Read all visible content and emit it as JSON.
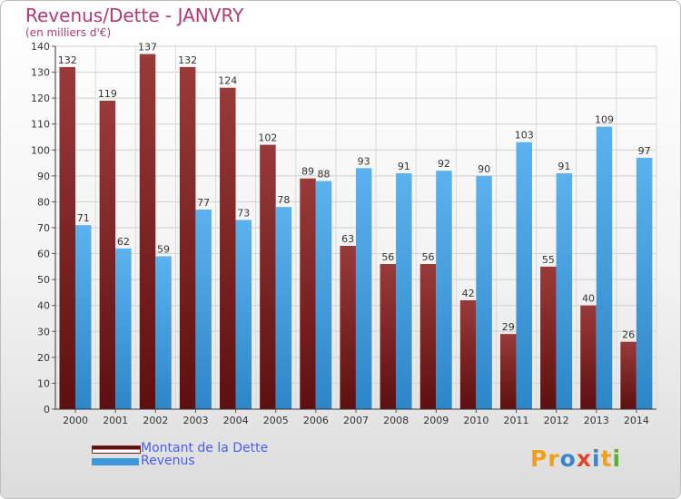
{
  "title": "Revenus/Dette - JANVRY",
  "subtitle": "(en milliers d'€)",
  "logo": {
    "text": "Proxiti",
    "letter_colors": [
      "#f0a020",
      "#f0a020",
      "#3a86c8",
      "#e0462a",
      "#3a86c8",
      "#f0a020",
      "#58b030"
    ]
  },
  "chart_data": {
    "type": "bar",
    "categories": [
      "2000",
      "2001",
      "2002",
      "2003",
      "2004",
      "2005",
      "2006",
      "2007",
      "2008",
      "2009",
      "2010",
      "2011",
      "2012",
      "2013",
      "2014"
    ],
    "series": [
      {
        "name": "Montant de la Dette",
        "color": "#7a1e1e",
        "color_light": "#9a3a3a",
        "values": [
          132,
          119,
          137,
          132,
          124,
          102,
          89,
          63,
          56,
          56,
          42,
          29,
          55,
          40,
          26
        ]
      },
      {
        "name": "Revenus",
        "color": "#3d98dc",
        "color_light": "#5aafea",
        "values": [
          71,
          62,
          59,
          77,
          73,
          78,
          88,
          93,
          91,
          92,
          90,
          103,
          91,
          109,
          97
        ]
      }
    ],
    "ylim": [
      0,
      140
    ],
    "yticks": [
      0,
      10,
      20,
      30,
      40,
      50,
      60,
      70,
      80,
      90,
      100,
      110,
      120,
      130,
      140
    ],
    "grid": true,
    "legend_position": "bottom-left"
  }
}
